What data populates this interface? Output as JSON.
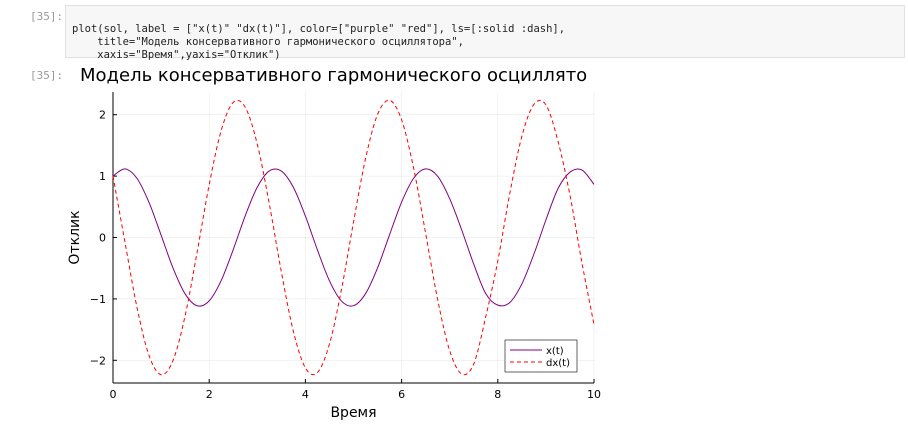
{
  "cell": {
    "input_prompt": "[35]:",
    "code_lines": [
      "plot(sol, label = [\"x(t)\" \"dx(t)\"], color=[\"purple\" \"red\"], ls=[:solid :dash],",
      "    title=\"Модель консервативного гармонического осциллятора\",",
      "    xaxis=\"Время\",yaxis=\"Отклик\")"
    ],
    "output_prompt": "[35]:"
  },
  "chart_data": {
    "type": "line",
    "title": "Модель консервативного гармонического осциллято",
    "x_label": "Время",
    "y_label": "Отклик",
    "x": [
      0,
      0.25,
      0.5,
      0.75,
      1,
      1.25,
      1.5,
      1.75,
      2,
      2.25,
      2.5,
      2.75,
      3,
      3.25,
      3.5,
      3.75,
      4,
      4.25,
      4.5,
      4.75,
      5,
      5.25,
      5.5,
      5.75,
      6,
      6.25,
      6.5,
      6.75,
      7,
      7.25,
      7.5,
      7.75,
      8,
      8.25,
      8.5,
      8.75,
      9,
      9.25,
      9.5,
      9.75,
      10
    ],
    "series": [
      {
        "name": "x(t)",
        "color": "#800080",
        "dash": "solid",
        "values": [
          1,
          1.117,
          0.961,
          0.569,
          0.038,
          -0.502,
          -0.919,
          -1.112,
          -1.032,
          -0.7,
          -0.196,
          0.356,
          0.82,
          1.084,
          1.082,
          0.816,
          0.349,
          -0.203,
          -0.705,
          -1.035,
          -1.111,
          -0.915,
          -0.496,
          0.046,
          0.576,
          0.965,
          1.117,
          0.997,
          0.632,
          0.122,
          -0.435,
          -0.914,
          -1.102,
          -1.058,
          -0.756,
          -0.273,
          0.285,
          0.794,
          1.064,
          1.099,
          0.865
        ]
      },
      {
        "name": "dx(t)",
        "color": "#ff0000",
        "dash": "dash",
        "values": [
          1,
          -0.081,
          -1.143,
          -1.924,
          -2.235,
          -1.998,
          -1.272,
          -0.235,
          0.86,
          1.744,
          2.201,
          2.12,
          1.519,
          0.546,
          -0.56,
          -1.529,
          -2.124,
          -2.199,
          -1.735,
          -0.847,
          0.249,
          1.284,
          2.004,
          2.234,
          1.917,
          1.13,
          0.067,
          -1.013,
          -1.844,
          -2.223,
          -2.06,
          -1.289,
          -0.382,
          0.721,
          1.648,
          2.168,
          2.162,
          1.573,
          0.689,
          -0.415,
          -1.418
        ]
      }
    ],
    "xlim": [
      0,
      10
    ],
    "xticks": [
      0,
      2,
      4,
      6,
      8,
      10
    ],
    "ylim": [
      -2.37,
      2.37
    ],
    "yticks": [
      {
        "value": -2,
        "label": "−2"
      },
      {
        "value": -1,
        "label": "−1"
      },
      0,
      1,
      2
    ],
    "grid": true,
    "legend": "bottom-right"
  }
}
